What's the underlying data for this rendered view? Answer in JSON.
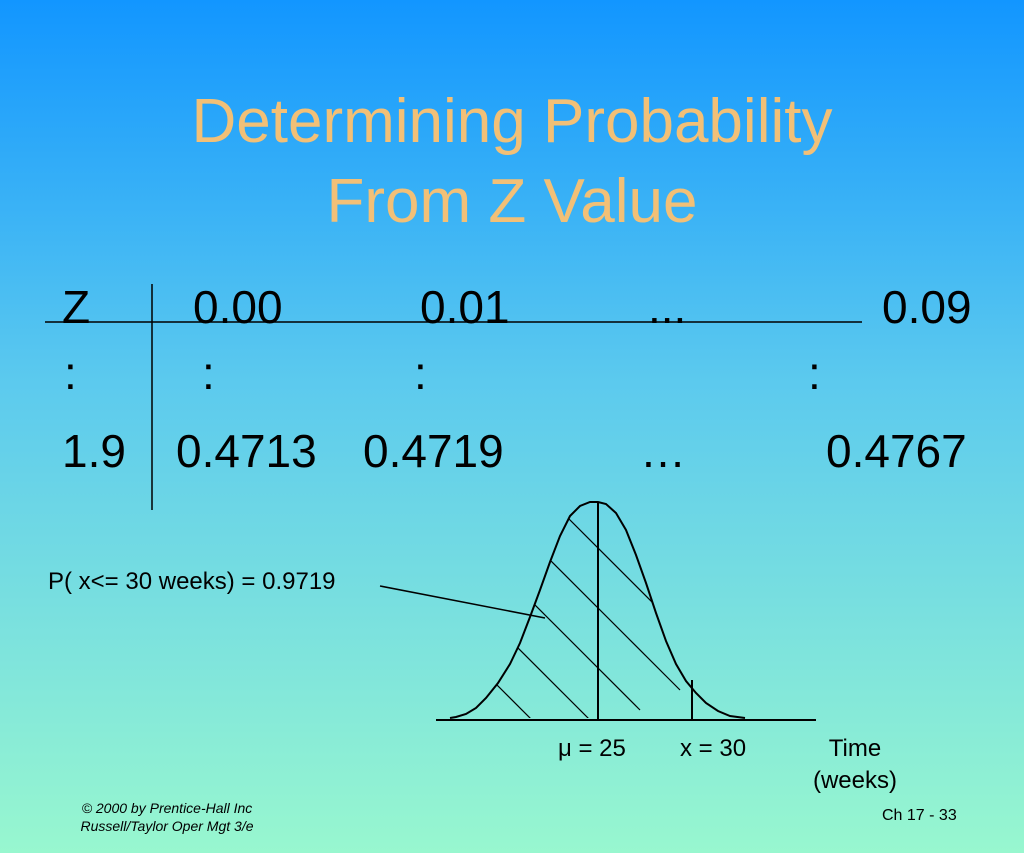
{
  "slide": {
    "title_line1": "Determining Probability",
    "title_line2": "From Z Value"
  },
  "table": {
    "header": [
      "Z",
      "0.00",
      "0.01",
      "...",
      "0.09"
    ],
    "ellipsis_row": [
      ":",
      ":",
      ":",
      ":"
    ],
    "row": [
      "1.9",
      "0.4713",
      "0.4719",
      "…",
      "0.4767"
    ]
  },
  "figure": {
    "probability_label": "P( x<= 30 weeks) = 0.9719",
    "mean_label": "μ = 25",
    "x_label": "x = 30",
    "axis_label_line1": "Time",
    "axis_label_line2": "(weeks)"
  },
  "footer": {
    "copyright": "© 2000 by Prentice-Hall Inc",
    "book": "Russell/Taylor  Oper Mgt 3/e",
    "page": "Ch 17 - 33"
  }
}
